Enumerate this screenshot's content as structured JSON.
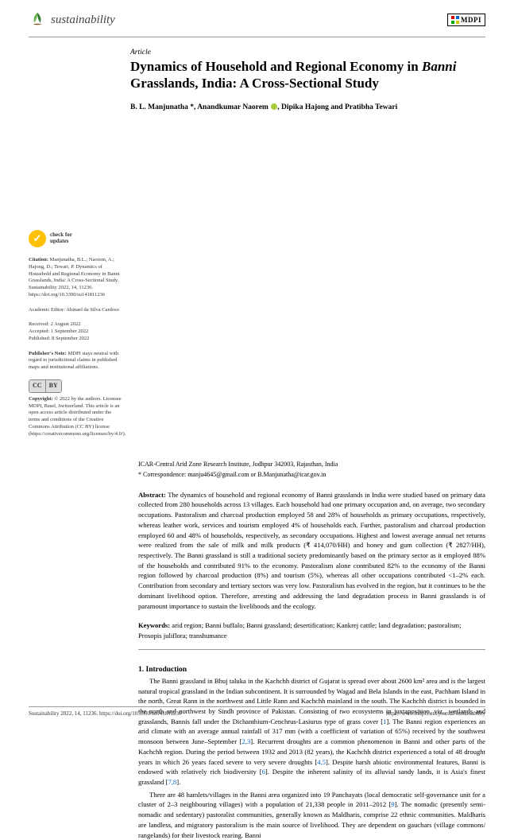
{
  "journal_name": "sustainability",
  "publisher_logo_text": "MDPI",
  "article_type": "Article",
  "title_pre": "Dynamics of Household and Regional Economy in ",
  "title_italic": "Banni",
  "title_post": " Grasslands, India: A Cross-Sectional Study",
  "authors": "B. L. Manjunatha *, Anandkumar Naorem ",
  "authors_post_orcid": ", Dipika Hajong and Pratibha Tewari",
  "affiliation": "ICAR-Central Arid Zone Research Institute, Jodhpur 342003, Rajasthan, India",
  "correspondence": "* Correspondence: manju4645@gmail.com or B.Manjunatha@icar.gov.in",
  "abstract_label": "Abstract: ",
  "abstract_text": "The dynamics of household and regional economy of Banni grasslands in India were studied based on primary data collected from 280 households across 13 villages. Each household had one primary occupation and, on average, two secondary occupations. Pastoralism and charcoal production employed 58 and 28% of households as primary occupations, respectively, whereas leather work, services and tourism employed 4% of households each. Further, pastoralism and charcoal production employed 60 and 48% of households, respectively, as secondary occupations. Highest and lowest average annual net returns were realized from the sale of milk and milk products (₹ 414,070/HH) and honey and gum collection (₹ 2827/HH), respectively. The Banni grassland is still a traditional society predominantly based on the primary sector as it employed 88% of the households and contributed 91% to the economy. Pastoralism alone contributed 82% to the economy of the Banni region followed by charcoal production (8%) and tourism (5%), whereas all other occupations contributed <1–2% each. Contribution from secondary and tertiary sectors was very low. Pastoralism has evolved in the region, but it continues to be the dominant livelihood option. Therefore, arresting and addressing the land degradation process in Banni grasslands is of paramount importance to sustain the livelihoods and the ecology.",
  "keywords_label": "Keywords: ",
  "keywords_text": "arid region; Banni buffalo; Banni grassland; desertification; Kankrej cattle; land degradation; pastoralism; Prosopis juliflora; transhumance",
  "section1_heading": "1. Introduction",
  "intro_p1": "The Banni grassland in Bhuj taluka in the Kachchh district of Gujarat is spread over about 2600 km² area and is the largest natural tropical grassland in the Indian subcontinent. It is surrounded by Wagad and Bela Islands in the east, Pachham Island in the north, Great Rann in the northwest and Little Rann and Kachchh mainland in the south. The Kachchh district is bounded in the north and northwest by Sindh province of Pakistan. Consisting of two ecosystems in juxtaposition, viz., wetlands and grasslands, Bannis fall under the Dichanthium-Cenchrus-Lasiurus type of grass cover [1]. The Banni region experiences an arid climate with an average annual rainfall of 317 mm (with a coefficient of variation of 65%) received by the southwest monsoon between June–September [2,3]. Recurrent droughts are a common phenomenon in Banni and other parts of the Kachchh region. During the period between 1932 and 2013 (82 years), the Kachchh district experienced a total of 48 drought years in which 26 years faced severe to very severe droughts [4,5]. Despite harsh abiotic environmental features, Banni is endowed with relatively rich biodiversity [6]. Despite the inherent salinity of its alluvial sandy lands, it is Asia's finest grassland [7,8].",
  "intro_p2": "There are 48 hamlets/villages in the Banni area organized into 19 Panchayats (local democratic self-governance unit for a cluster of 2–3 neighbouring villages) with a population of 21,338 people in 2011–2012 [9]. The nomadic (presently semi-nomadic and sedentary) pastoralist communities, generally known as Maldharis, comprise 22 ethnic communities. Maldharis are landless, and migratory pastoralism is the main source of livelihood. They are dependent on gauchars (village commons/ rangelands) for their livestock rearing. Banni",
  "updates_line1": "check for",
  "updates_line2": "updates",
  "citation_label": "Citation: ",
  "citation_text": "Manjunatha, B.L.; Naorem, A.; Hajong, D.; Tewari, P. Dynamics of Household and Regional Economy in Banni Grasslands, India: A Cross-Sectional Study. Sustainability 2022, 14, 11236. https://doi.org/10.3390/su141811236",
  "editor_label": "Academic Editor: ",
  "editor_text": "Abinael da Silva Cardoso",
  "received": "Received: 2 August 2022",
  "accepted": "Accepted: 1 September 2022",
  "published": "Published: 8 September 2022",
  "pubnote_label": "Publisher's Note: ",
  "pubnote_text": "MDPI stays neutral with regard to jurisdictional claims in published maps and institutional affiliations.",
  "cc_cc": "CC",
  "cc_by": "BY",
  "copyright_label": "Copyright: ",
  "copyright_text": "© 2022 by the authors. Licensee MDPI, Basel, Switzerland. This article is an open access article distributed under the terms and conditions of the Creative Commons Attribution (CC BY) license (https://creativecommons.org/licenses/by/4.0/).",
  "footer_left": "Sustainability 2022, 14, 11236. https://doi.org/10.3390/su141811236",
  "footer_right": "https://www.mdpi.com/journal/sustainability",
  "colors": {
    "text": "#000000",
    "link": "#0066cc",
    "rule": "#9a9a9a",
    "orcid": "#a6ce39",
    "updates_badge": "#ffc107"
  }
}
